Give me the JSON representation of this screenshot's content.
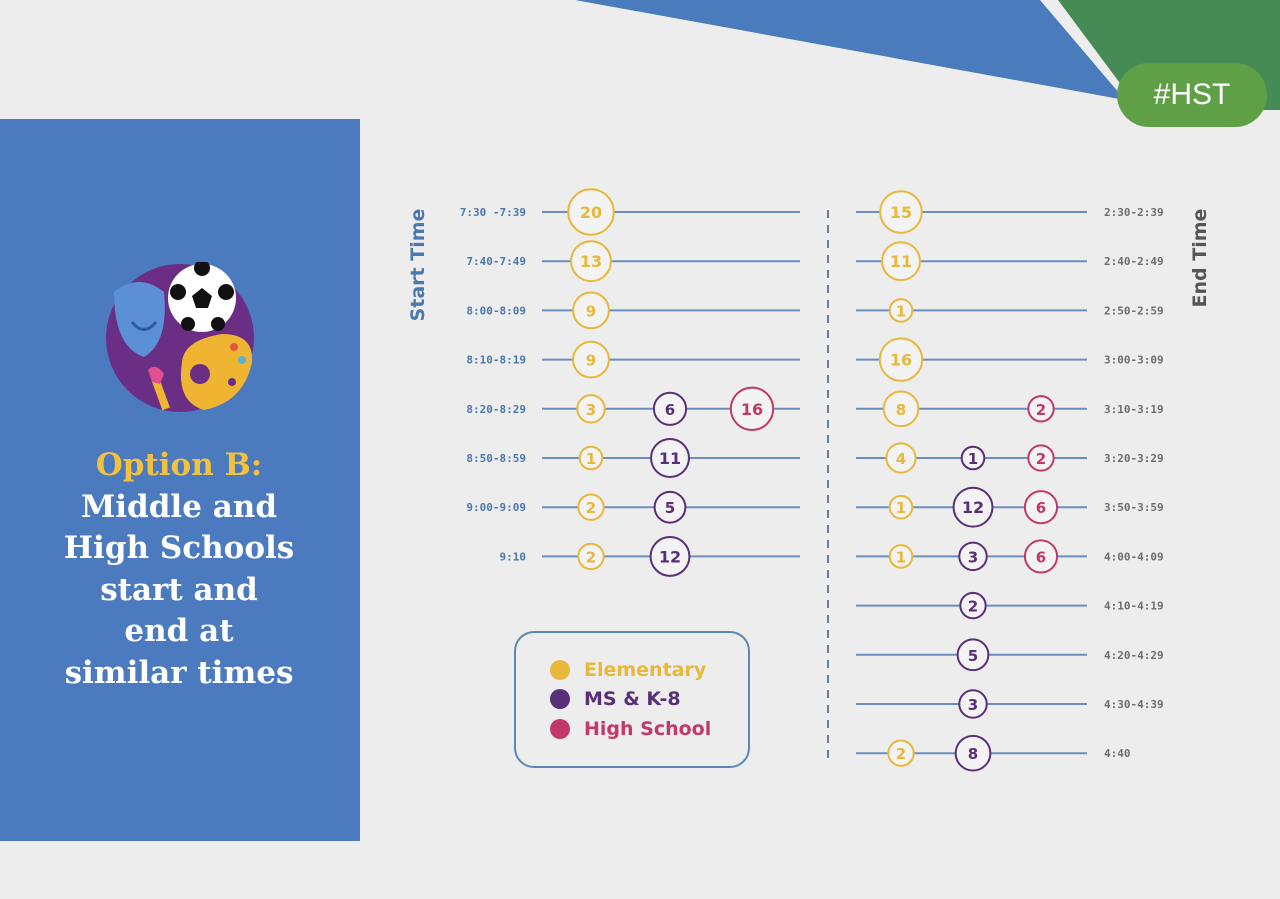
{
  "hashtag": "#HST",
  "panel": {
    "option_label": "Option B:",
    "title_lines": [
      "Middle and",
      "High Schools",
      "start and",
      "end at",
      "similar times"
    ]
  },
  "logo_icons": [
    "theater-mask-icon",
    "soccer-ball-icon",
    "paint-palette-icon",
    "paintbrush-icon"
  ],
  "colors": {
    "elementary": "#e8b83a",
    "ms_k8": "#5a2f78",
    "high_school": "#c2386a",
    "panel": "#4b7bbe",
    "axis_text": "#4a79b0",
    "line": "#6a8fbe",
    "hashtag_bg": "#5fa046"
  },
  "legend": [
    {
      "label": "Elementary",
      "key": "elementary"
    },
    {
      "label": "MS & K-8",
      "key": "ms_k8"
    },
    {
      "label": "High School",
      "key": "high_school"
    }
  ],
  "chart_data": [
    {
      "type": "dot-timeline",
      "axis_label": "Start Time",
      "series_order": [
        "elementary",
        "ms_k8",
        "high_school"
      ],
      "rows": [
        {
          "time": "7:30 -7:39",
          "elementary": 20,
          "ms_k8": null,
          "high_school": null
        },
        {
          "time": "7:40-7:49",
          "elementary": 13,
          "ms_k8": null,
          "high_school": null
        },
        {
          "time": "8:00-8:09",
          "elementary": 9,
          "ms_k8": null,
          "high_school": null
        },
        {
          "time": "8:10-8:19",
          "elementary": 9,
          "ms_k8": null,
          "high_school": null
        },
        {
          "time": "8:20-8:29",
          "elementary": 3,
          "ms_k8": 6,
          "high_school": 16
        },
        {
          "time": "8:50-8:59",
          "elementary": 1,
          "ms_k8": 11,
          "high_school": null
        },
        {
          "time": "9:00-9:09",
          "elementary": 2,
          "ms_k8": 5,
          "high_school": null
        },
        {
          "time": "9:10",
          "elementary": 2,
          "ms_k8": 12,
          "high_school": null
        }
      ]
    },
    {
      "type": "dot-timeline",
      "axis_label": "End Time",
      "series_order": [
        "elementary",
        "ms_k8",
        "high_school"
      ],
      "rows": [
        {
          "time": "2:30-2:39",
          "elementary": 15,
          "ms_k8": null,
          "high_school": null
        },
        {
          "time": "2:40-2:49",
          "elementary": 11,
          "ms_k8": null,
          "high_school": null
        },
        {
          "time": "2:50-2:59",
          "elementary": 1,
          "ms_k8": null,
          "high_school": null
        },
        {
          "time": "3:00-3:09",
          "elementary": 16,
          "ms_k8": null,
          "high_school": null
        },
        {
          "time": "3:10-3:19",
          "elementary": 8,
          "ms_k8": null,
          "high_school": 2
        },
        {
          "time": "3:20-3:29",
          "elementary": 4,
          "ms_k8": 1,
          "high_school": 2
        },
        {
          "time": "3:50-3:59",
          "elementary": 1,
          "ms_k8": 12,
          "high_school": 6
        },
        {
          "time": "4:00-4:09",
          "elementary": 1,
          "ms_k8": 3,
          "high_school": 6
        },
        {
          "time": "4:10-4:19",
          "elementary": null,
          "ms_k8": 2,
          "high_school": null
        },
        {
          "time": "4:20-4:29",
          "elementary": null,
          "ms_k8": 5,
          "high_school": null
        },
        {
          "time": "4:30-4:39",
          "elementary": null,
          "ms_k8": 3,
          "high_school": null
        },
        {
          "time": "4:40",
          "elementary": 2,
          "ms_k8": 8,
          "high_school": null
        }
      ]
    }
  ]
}
